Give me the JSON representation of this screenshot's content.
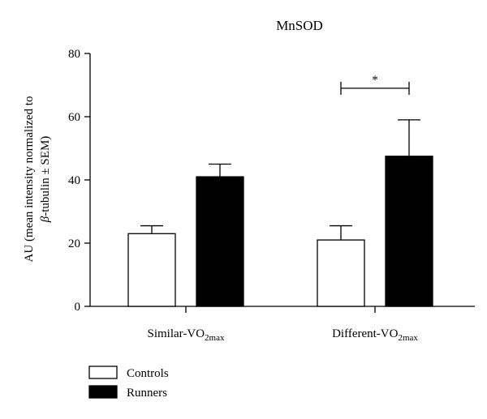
{
  "chart_data": {
    "type": "bar",
    "title": "MnSOD",
    "ylabel_line1": "AU (mean intensity normalized to",
    "ylabel_line2_greek": "β",
    "ylabel_line2_rest": "-tubulin ± SEM)",
    "ylim": [
      0,
      80
    ],
    "yticks": [
      "0",
      "20",
      "40",
      "60",
      "80"
    ],
    "categories": [
      {
        "main": "Similar-VO",
        "sub": "2max"
      },
      {
        "main": "Different-VO",
        "sub": "2max"
      }
    ],
    "series": [
      {
        "name": "Controls",
        "values": [
          23,
          21
        ],
        "errors": [
          2.5,
          4.5
        ],
        "color": "#ffffff"
      },
      {
        "name": "Runners",
        "values": [
          41,
          47.5
        ],
        "errors": [
          4,
          11.5
        ],
        "color": "#000000"
      }
    ],
    "annotations": [
      {
        "text": "*",
        "category_index": 1,
        "y": 69
      }
    ],
    "legend": "bottom-left",
    "grid": false
  }
}
